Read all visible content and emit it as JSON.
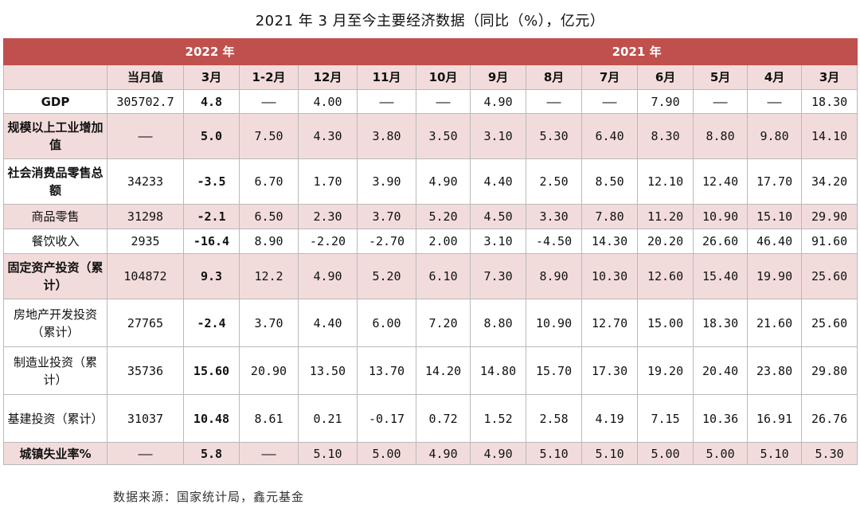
{
  "title": "2021 年 3 月至今主要经济数据（同比（%），亿元）",
  "header": {
    "year_2022": "2022 年",
    "year_2021": "2021 年",
    "columns": [
      "当月值",
      "3月",
      "1-2月",
      "12月",
      "11月",
      "10月",
      "9月",
      "8月",
      "7月",
      "6月",
      "5月",
      "4月",
      "3月"
    ]
  },
  "rows": [
    {
      "label": "GDP",
      "label_bold": true,
      "highlight": false,
      "height": 30,
      "values": [
        "305702.7",
        "4.8",
        "——",
        "4.00",
        "——",
        "——",
        "4.90",
        "——",
        "——",
        "7.90",
        "——",
        "——",
        "18.30"
      ]
    },
    {
      "label": "规模以上工业增加值",
      "label_bold": true,
      "highlight": true,
      "height": 57,
      "values": [
        "——",
        "5.0",
        "7.50",
        "4.30",
        "3.80",
        "3.50",
        "3.10",
        "5.30",
        "6.40",
        "8.30",
        "8.80",
        "9.80",
        "14.10"
      ]
    },
    {
      "label": "社会消费品零售总额",
      "label_bold": true,
      "highlight": false,
      "height": 57,
      "values": [
        "34233",
        "-3.5",
        "6.70",
        "1.70",
        "3.90",
        "4.90",
        "4.40",
        "2.50",
        "8.50",
        "12.10",
        "12.40",
        "17.70",
        "34.20"
      ]
    },
    {
      "label": "商品零售",
      "label_bold": false,
      "highlight": true,
      "height": 31,
      "values": [
        "31298",
        "-2.1",
        "6.50",
        "2.30",
        "3.70",
        "5.20",
        "4.50",
        "3.30",
        "7.80",
        "11.20",
        "10.90",
        "15.10",
        "29.90"
      ]
    },
    {
      "label": "餐饮收入",
      "label_bold": false,
      "highlight": false,
      "height": 31,
      "values": [
        "2935",
        "-16.4",
        "8.90",
        "-2.20",
        "-2.70",
        "2.00",
        "3.10",
        "-4.50",
        "14.30",
        "20.20",
        "26.60",
        "46.40",
        "91.60"
      ]
    },
    {
      "label": "固定资产投资（累计）",
      "label_bold": true,
      "highlight": true,
      "height": 57,
      "values": [
        "104872",
        "9.3",
        "12.2",
        "4.90",
        "5.20",
        "6.10",
        "7.30",
        "8.90",
        "10.30",
        "12.60",
        "15.40",
        "19.90",
        "25.60"
      ]
    },
    {
      "label": "房地产开发投资（累计）",
      "label_bold": false,
      "highlight": false,
      "height": 60,
      "values": [
        "27765",
        "-2.4",
        "3.70",
        "4.40",
        "6.00",
        "7.20",
        "8.80",
        "10.90",
        "12.70",
        "15.00",
        "18.30",
        "21.60",
        "25.60"
      ]
    },
    {
      "label": "制造业投资（累计）",
      "label_bold": false,
      "highlight": false,
      "height": 60,
      "values": [
        "35736",
        "15.60",
        "20.90",
        "13.50",
        "13.70",
        "14.20",
        "14.80",
        "15.70",
        "17.30",
        "19.20",
        "20.40",
        "23.80",
        "29.80"
      ]
    },
    {
      "label": "基建投资（累计）",
      "label_bold": false,
      "highlight": false,
      "height": 60,
      "values": [
        "31037",
        "10.48",
        "8.61",
        "0.21",
        "-0.17",
        "0.72",
        "1.52",
        "2.58",
        "4.19",
        "7.15",
        "10.36",
        "16.91",
        "26.76"
      ]
    },
    {
      "label": "城镇失业率%",
      "label_bold": true,
      "highlight": true,
      "height": 28,
      "values": [
        "——",
        "5.8",
        "——",
        "5.10",
        "5.00",
        "4.90",
        "4.90",
        "5.10",
        "5.10",
        "5.00",
        "5.00",
        "5.10",
        "5.30"
      ]
    }
  ],
  "source": "数据来源：国家统计局，鑫元基金"
}
